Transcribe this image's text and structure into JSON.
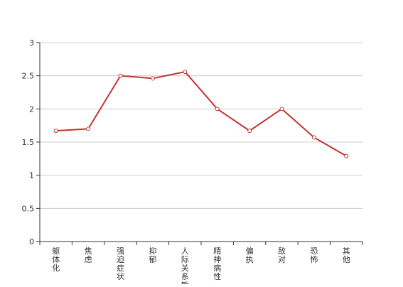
{
  "chart_data": {
    "type": "line",
    "categories": [
      "躯体化",
      "焦虑",
      "强迫症状",
      "抑郁",
      "人际关系敏感",
      "精神病性",
      "偏执",
      "敌对",
      "恐怖",
      "其他"
    ],
    "series": [
      {
        "values": [
          1.67,
          1.7,
          2.5,
          2.46,
          2.56,
          2.0,
          1.67,
          2.0,
          1.57,
          1.29
        ]
      }
    ],
    "title": "",
    "xlabel": "",
    "ylabel": "",
    "ylim": [
      0,
      3
    ],
    "yticks": [
      "0",
      "0.5",
      "1",
      "1.5",
      "2",
      "2.5",
      "3"
    ],
    "grid": true,
    "legend": "none",
    "colors": {
      "line": "#c23531",
      "grid": "#cccccc",
      "axis": "#333333",
      "marker_fill": "#ffffff"
    }
  }
}
